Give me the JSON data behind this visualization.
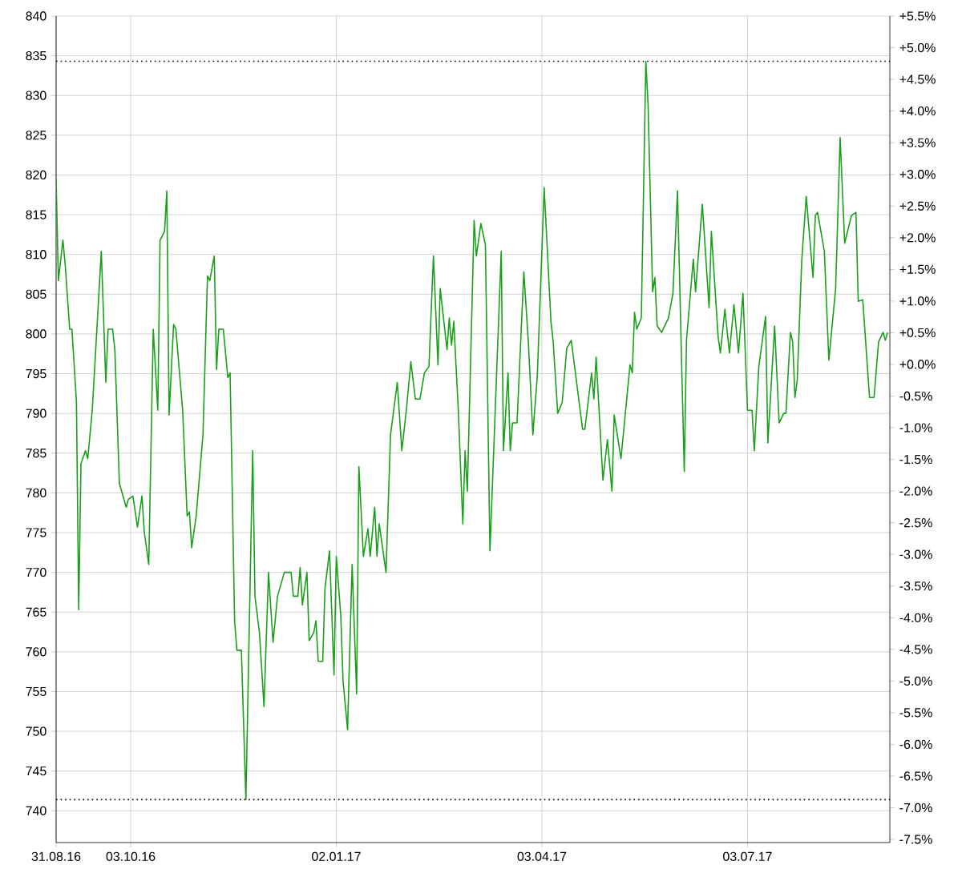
{
  "chart_data": {
    "type": "line",
    "color": "#19a019",
    "x": [
      "2016-08-31",
      "2016-09-01",
      "2016-09-03",
      "2016-09-04",
      "2016-09-06",
      "2016-09-07",
      "2016-09-09",
      "2016-09-10",
      "2016-09-11",
      "2016-09-13",
      "2016-09-14",
      "2016-09-16",
      "2016-09-20",
      "2016-09-22",
      "2016-09-23",
      "2016-09-25",
      "2016-09-26",
      "2016-09-28",
      "2016-10-01",
      "2016-10-02",
      "2016-10-04",
      "2016-10-06",
      "2016-10-08",
      "2016-10-09",
      "2016-10-11",
      "2016-10-13",
      "2016-10-15",
      "2016-10-16",
      "2016-10-18",
      "2016-10-19",
      "2016-10-20",
      "2016-10-22",
      "2016-10-23",
      "2016-10-26",
      "2016-10-28",
      "2016-10-29",
      "2016-10-30",
      "2016-11-01",
      "2016-11-04",
      "2016-11-06",
      "2016-11-07",
      "2016-11-09",
      "2016-11-10",
      "2016-11-11",
      "2016-11-13",
      "2016-11-15",
      "2016-11-16",
      "2016-11-18",
      "2016-11-19",
      "2016-11-21",
      "2016-11-23",
      "2016-11-26",
      "2016-11-27",
      "2016-11-29",
      "2016-12-01",
      "2016-12-03",
      "2016-12-05",
      "2016-12-07",
      "2016-12-10",
      "2016-12-13",
      "2016-12-14",
      "2016-12-16",
      "2016-12-17",
      "2016-12-18",
      "2016-12-20",
      "2016-12-21",
      "2016-12-23",
      "2016-12-24",
      "2016-12-25",
      "2016-12-27",
      "2016-12-28",
      "2016-12-30",
      "2017-01-01",
      "2017-01-02",
      "2017-01-04",
      "2017-01-05",
      "2017-01-07",
      "2017-01-09",
      "2017-01-11",
      "2017-01-12",
      "2017-01-14",
      "2017-01-16",
      "2017-01-17",
      "2017-01-19",
      "2017-01-20",
      "2017-01-21",
      "2017-01-24",
      "2017-01-26",
      "2017-01-29",
      "2017-01-31",
      "2017-02-02",
      "2017-02-04",
      "2017-02-06",
      "2017-02-08",
      "2017-02-10",
      "2017-02-12",
      "2017-02-14",
      "2017-02-16",
      "2017-02-17",
      "2017-02-20",
      "2017-02-21",
      "2017-02-22",
      "2017-02-23",
      "2017-02-25",
      "2017-02-27",
      "2017-02-28",
      "2017-03-01",
      "2017-03-04",
      "2017-03-05",
      "2017-03-07",
      "2017-03-09",
      "2017-03-11",
      "2017-03-16",
      "2017-03-17",
      "2017-03-19",
      "2017-03-20",
      "2017-03-21",
      "2017-03-23",
      "2017-03-26",
      "2017-03-28",
      "2017-03-30",
      "2017-04-01",
      "2017-04-04",
      "2017-04-07",
      "2017-04-08",
      "2017-04-10",
      "2017-04-12",
      "2017-04-14",
      "2017-04-16",
      "2017-04-21",
      "2017-04-22",
      "2017-04-25",
      "2017-04-26",
      "2017-04-27",
      "2017-04-30",
      "2017-05-02",
      "2017-05-04",
      "2017-05-05",
      "2017-05-08",
      "2017-05-12",
      "2017-05-13",
      "2017-05-14",
      "2017-05-15",
      "2017-05-17",
      "2017-05-19",
      "2017-05-20",
      "2017-05-22",
      "2017-05-23",
      "2017-05-24",
      "2017-05-26",
      "2017-05-29",
      "2017-05-31",
      "2017-06-02",
      "2017-06-05",
      "2017-06-06",
      "2017-06-09",
      "2017-06-10",
      "2017-06-13",
      "2017-06-16",
      "2017-06-17",
      "2017-06-20",
      "2017-06-21",
      "2017-06-23",
      "2017-06-25",
      "2017-06-27",
      "2017-06-29",
      "2017-07-01",
      "2017-07-03",
      "2017-07-05",
      "2017-07-06",
      "2017-07-08",
      "2017-07-11",
      "2017-07-12",
      "2017-07-15",
      "2017-07-17",
      "2017-07-19",
      "2017-07-20",
      "2017-07-22",
      "2017-07-23",
      "2017-07-24",
      "2017-07-25",
      "2017-07-27",
      "2017-07-29",
      "2017-08-01",
      "2017-08-02",
      "2017-08-03",
      "2017-08-06",
      "2017-08-08",
      "2017-08-11",
      "2017-08-13",
      "2017-08-15",
      "2017-08-18",
      "2017-08-20",
      "2017-08-21",
      "2017-08-23",
      "2017-08-26",
      "2017-08-28",
      "2017-08-30",
      "2017-09-01",
      "2017-09-02",
      "2017-09-03"
    ],
    "values": [
      819.5,
      806.7,
      811.8,
      808.8,
      800.6,
      800.6,
      791.4,
      765.3,
      783.7,
      785.3,
      784.3,
      790.4,
      810.4,
      793.9,
      800.6,
      800.6,
      798,
      781.2,
      778.2,
      779.2,
      779.6,
      775.7,
      779.6,
      775.1,
      771,
      800.6,
      790.4,
      811.8,
      812.9,
      818,
      789.8,
      801.2,
      800.6,
      790.4,
      777.1,
      777.6,
      773.1,
      777.1,
      787.3,
      807.3,
      806.7,
      809.8,
      795.5,
      800.6,
      800.6,
      794.5,
      795.1,
      763.9,
      760.2,
      760.2,
      741.4,
      785.3,
      767,
      762.4,
      753.1,
      770,
      761.2,
      767,
      770,
      770,
      767,
      767,
      770.6,
      765.9,
      770,
      761.4,
      762.4,
      763.9,
      758.8,
      758.8,
      768,
      772.7,
      757.1,
      772,
      764.5,
      756.3,
      750.2,
      771,
      754.7,
      783.3,
      772,
      775.5,
      772,
      778.2,
      772,
      776.1,
      770,
      787.3,
      793.9,
      785.3,
      790.4,
      796.5,
      791.8,
      791.8,
      795.1,
      795.9,
      809.8,
      796.1,
      805.7,
      798,
      802,
      798.6,
      801.6,
      790.4,
      776.1,
      785.3,
      780.2,
      814.3,
      809.8,
      813.9,
      811.2,
      772.7,
      810.4,
      785.3,
      795.1,
      785.3,
      788.8,
      788.8,
      807.8,
      799,
      787.3,
      794.9,
      818.4,
      801.6,
      799,
      790,
      791.4,
      798.2,
      799.2,
      788,
      788,
      795.1,
      791.8,
      797.1,
      781.6,
      786.7,
      780.2,
      789.8,
      784.3,
      796.1,
      795.1,
      802.7,
      800.6,
      802,
      834.3,
      828.8,
      805.3,
      807.1,
      801,
      800.2,
      802,
      805.1,
      818,
      782.7,
      799.2,
      809.4,
      805.3,
      816.3,
      803.3,
      812.9,
      799.6,
      797.6,
      803.1,
      797.6,
      803.7,
      797.6,
      805.1,
      790.4,
      790.4,
      785.3,
      795.9,
      802.2,
      786.3,
      801,
      788.8,
      790,
      790,
      800.2,
      799,
      792,
      794.1,
      809.2,
      817.3,
      807.1,
      814.9,
      815.3,
      810.4,
      796.7,
      805.7,
      824.7,
      811.4,
      814.9,
      815.3,
      804.1,
      804.3,
      792,
      792,
      799,
      800.2,
      799.2,
      800.2
    ],
    "xlim": [
      "2016-08-31",
      "2017-09-04"
    ],
    "xticks": [
      {
        "value": "2016-08-31",
        "label": "31.08.16"
      },
      {
        "value": "2016-10-03",
        "label": "03.10.16"
      },
      {
        "value": "2017-01-02",
        "label": "02.01.17"
      },
      {
        "value": "2017-04-03",
        "label": "03.04.17"
      },
      {
        "value": "2017-07-03",
        "label": "03.07.17"
      }
    ],
    "ylim": [
      736,
      840
    ],
    "yticks": [
      740,
      745,
      750,
      755,
      760,
      765,
      770,
      775,
      780,
      785,
      790,
      795,
      800,
      805,
      810,
      815,
      820,
      825,
      830,
      835,
      840
    ],
    "y2lim": [
      -7.55,
      5.5
    ],
    "y2ticks": [
      {
        "value": 5.5,
        "label": "+5.5%"
      },
      {
        "value": 5,
        "label": "+5.0%"
      },
      {
        "value": 4.5,
        "label": "+4.5%"
      },
      {
        "value": 4,
        "label": "+4.0%"
      },
      {
        "value": 3.5,
        "label": "+3.5%"
      },
      {
        "value": 3,
        "label": "+3.0%"
      },
      {
        "value": 2.5,
        "label": "+2.5%"
      },
      {
        "value": 2,
        "label": "+2.0%"
      },
      {
        "value": 1.5,
        "label": "+1.5%"
      },
      {
        "value": 1,
        "label": "+1.0%"
      },
      {
        "value": 0.5,
        "label": "+0.5%"
      },
      {
        "value": 0,
        "label": "+0.0%"
      },
      {
        "value": -0.5,
        "label": "-0.5%"
      },
      {
        "value": -1,
        "label": "-1.0%"
      },
      {
        "value": -1.5,
        "label": "-1.5%"
      },
      {
        "value": -2,
        "label": "-2.0%"
      },
      {
        "value": -2.5,
        "label": "-2.5%"
      },
      {
        "value": -3,
        "label": "-3.0%"
      },
      {
        "value": -3.5,
        "label": "-3.5%"
      },
      {
        "value": -4,
        "label": "-4.0%"
      },
      {
        "value": -4.5,
        "label": "-4.5%"
      },
      {
        "value": -5,
        "label": "-5.0%"
      },
      {
        "value": -5.5,
        "label": "-5.5%"
      },
      {
        "value": -6,
        "label": "-6.0%"
      },
      {
        "value": -6.5,
        "label": "-6.5%"
      },
      {
        "value": -7,
        "label": "-7.0%"
      },
      {
        "value": -7.5,
        "label": "-7.5%"
      }
    ],
    "grid": true,
    "ref_lines": [
      {
        "axis": "y",
        "value": 834.3,
        "color": "#000000",
        "line_style": "dotted"
      },
      {
        "axis": "y",
        "value": 741.4,
        "color": "#000000",
        "line_style": "dotted"
      }
    ]
  }
}
